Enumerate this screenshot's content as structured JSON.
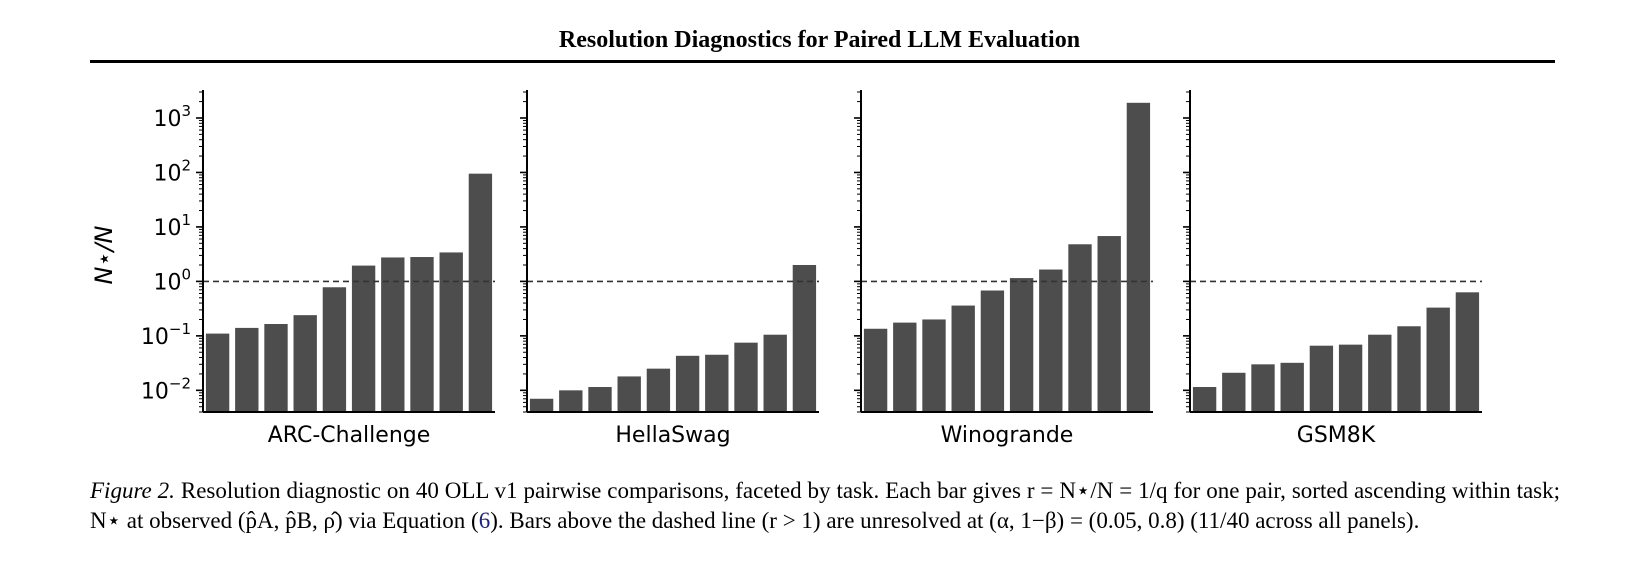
{
  "header": {
    "title": "Resolution Diagnostics for Paired LLM Evaluation"
  },
  "chart_data": {
    "type": "bar",
    "yscale": "log",
    "ylabel": "N⋆/N",
    "ylim": [
      0.004,
      3000
    ],
    "yticks": [
      0.01,
      0.1,
      1,
      10,
      100,
      1000
    ],
    "ytick_labels": [
      {
        "base": "10",
        "exp": "−2"
      },
      {
        "base": "10",
        "exp": "−1"
      },
      {
        "base": "10",
        "exp": "0"
      },
      {
        "base": "10",
        "exp": "1"
      },
      {
        "base": "10",
        "exp": "2"
      },
      {
        "base": "10",
        "exp": "3"
      }
    ],
    "reference_line": {
      "y": 1,
      "style": "dashed"
    },
    "bar_color": "#4d4d4d",
    "grid": false,
    "panels": [
      {
        "name": "ARC-Challenge",
        "values": [
          0.11,
          0.14,
          0.165,
          0.24,
          0.78,
          1.95,
          2.75,
          2.8,
          3.4,
          95
        ]
      },
      {
        "name": "HellaSwag",
        "values": [
          0.007,
          0.01,
          0.0115,
          0.018,
          0.025,
          0.043,
          0.045,
          0.075,
          0.105,
          2.0
        ]
      },
      {
        "name": "Winogrande",
        "values": [
          0.135,
          0.175,
          0.2,
          0.36,
          0.68,
          1.15,
          1.65,
          4.8,
          6.8,
          1900
        ]
      },
      {
        "name": "GSM8K",
        "values": [
          0.0115,
          0.021,
          0.03,
          0.032,
          0.066,
          0.069,
          0.105,
          0.15,
          0.33,
          0.63
        ]
      }
    ]
  },
  "caption": {
    "label": "Figure 2.",
    "text_1": "Resolution diagnostic on 40 OLL v1 pairwise comparisons, faceted by task. Each bar gives r = N⋆/N = 1/q for one pair, sorted ascending within task; N⋆ at observed (p̂A, p̂B, ρ̂) via Equation (",
    "eq_ref": "6",
    "text_2": "). Bars above the dashed line (r > 1) are unresolved at (α, 1−β) = (0.05, 0.8) (11/40 across all panels)."
  }
}
